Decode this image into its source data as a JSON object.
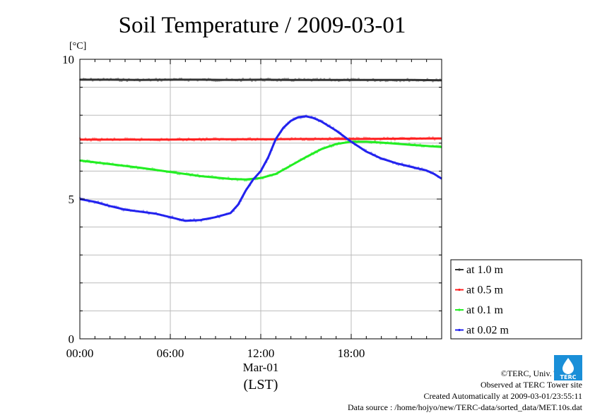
{
  "chart_data": {
    "type": "line",
    "title": "Soil Temperature / 2009-03-01",
    "unit_label": "[°C]",
    "xlabel": "(LST)",
    "date_label": "Mar-01",
    "xlim": [
      0,
      24
    ],
    "ylim": [
      0,
      10
    ],
    "x_ticks": [
      {
        "value": 0,
        "label": "00:00"
      },
      {
        "value": 6,
        "label": "06:00"
      },
      {
        "value": 12,
        "label": "12:00"
      },
      {
        "value": 18,
        "label": "18:00"
      }
    ],
    "y_ticks": [
      {
        "value": 0,
        "label": "0"
      },
      {
        "value": 5,
        "label": "5"
      },
      {
        "value": 10,
        "label": "10"
      }
    ],
    "grid": true,
    "legend_position": "right",
    "series": [
      {
        "name": "at 1.0 m",
        "color": "#333333",
        "x": [
          0,
          2,
          4,
          6,
          8,
          10,
          12,
          14,
          16,
          18,
          20,
          22,
          24
        ],
        "y": [
          9.27,
          9.27,
          9.26,
          9.27,
          9.27,
          9.26,
          9.27,
          9.26,
          9.26,
          9.26,
          9.26,
          9.26,
          9.25
        ]
      },
      {
        "name": "at 0.5 m",
        "color": "#ff2020",
        "x": [
          0,
          3,
          6,
          9,
          12,
          15,
          18,
          21,
          24
        ],
        "y": [
          7.13,
          7.13,
          7.13,
          7.14,
          7.14,
          7.15,
          7.15,
          7.16,
          7.17
        ]
      },
      {
        "name": "at 0.1 m",
        "color": "#22ee22",
        "x": [
          0,
          2,
          4,
          6,
          8,
          10,
          11,
          12,
          13,
          14,
          15,
          16,
          17,
          18,
          19,
          20,
          21,
          22,
          23,
          24
        ],
        "y": [
          6.38,
          6.25,
          6.12,
          5.97,
          5.82,
          5.72,
          5.7,
          5.75,
          5.9,
          6.2,
          6.5,
          6.78,
          6.97,
          7.05,
          7.05,
          7.02,
          6.98,
          6.94,
          6.9,
          6.86
        ]
      },
      {
        "name": "at 0.02 m",
        "color": "#2222ee",
        "x": [
          0,
          1,
          2,
          3,
          4,
          5,
          6,
          7,
          8,
          9,
          10,
          10.5,
          11,
          11.5,
          12,
          12.5,
          13,
          13.5,
          14,
          14.5,
          15,
          15.5,
          16,
          17,
          18,
          19,
          20,
          21,
          22,
          23,
          23.5,
          24
        ],
        "y": [
          5.0,
          4.9,
          4.75,
          4.62,
          4.55,
          4.48,
          4.35,
          4.22,
          4.25,
          4.35,
          4.5,
          4.8,
          5.3,
          5.7,
          6.0,
          6.5,
          7.15,
          7.55,
          7.8,
          7.93,
          7.96,
          7.9,
          7.78,
          7.45,
          7.05,
          6.7,
          6.45,
          6.28,
          6.15,
          6.02,
          5.9,
          5.73
        ]
      }
    ]
  },
  "footer": {
    "copyright": "©TERC, Univ. Tsukuba",
    "site": "Observed at TERC Tower site",
    "created": "Created Automatically at 2009-03-01/23:55:11",
    "source": "Data source : /home/hojyo/new/TERC-data/sorted_data/MET.10s.dat"
  },
  "logo": {
    "text": "TERC",
    "color": "#1a8fd8",
    "icon": "terc-logo-icon"
  }
}
